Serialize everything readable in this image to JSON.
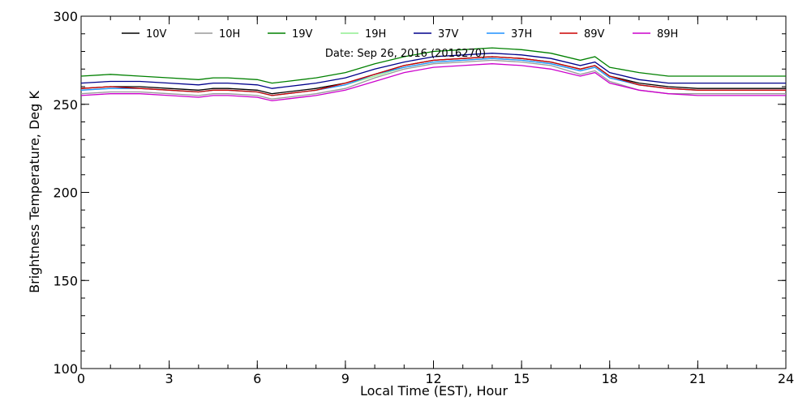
{
  "chart_data": {
    "type": "line",
    "title": "Date: Sep 26, 2016 (2016270)",
    "xlabel": "Local Time (EST), Hour",
    "ylabel": "Brightness Temperature, Deg  K",
    "xlim": [
      0,
      24
    ],
    "ylim": [
      100,
      300
    ],
    "x_ticks": [
      0,
      3,
      6,
      9,
      12,
      15,
      18,
      21,
      24
    ],
    "y_ticks": [
      100,
      150,
      200,
      250,
      300
    ],
    "grid": false,
    "legend_position": "top",
    "x": [
      0,
      1,
      2,
      3,
      4,
      4.5,
      5,
      6,
      6.5,
      7,
      8,
      9,
      10,
      11,
      12,
      13,
      14,
      15,
      16,
      17,
      17.5,
      18,
      19,
      20,
      21,
      22,
      23,
      24
    ],
    "series": [
      {
        "name": "10V",
        "color": "#000000",
        "values": [
          259,
          260,
          260,
          259,
          258,
          259,
          259,
          258,
          256,
          257,
          259,
          262,
          267,
          272,
          275,
          276,
          277,
          276,
          274,
          270,
          272,
          266,
          262,
          260,
          259,
          259,
          259,
          259
        ]
      },
      {
        "name": "10H",
        "color": "#999999",
        "values": [
          256,
          257,
          257,
          256,
          255,
          256,
          256,
          255,
          253,
          254,
          256,
          259,
          265,
          270,
          273,
          274,
          275,
          274,
          272,
          267,
          269,
          263,
          258,
          256,
          256,
          256,
          256,
          256
        ]
      },
      {
        "name": "19V",
        "color": "#008000",
        "values": [
          266,
          267,
          266,
          265,
          264,
          265,
          265,
          264,
          262,
          263,
          265,
          268,
          273,
          277,
          280,
          281,
          282,
          281,
          279,
          275,
          277,
          271,
          268,
          266,
          266,
          266,
          266,
          266
        ]
      },
      {
        "name": "19H",
        "color": "#90ee90",
        "values": [
          258,
          259,
          259,
          258,
          257,
          258,
          258,
          257,
          255,
          256,
          258,
          261,
          266,
          271,
          274,
          275,
          276,
          275,
          273,
          269,
          271,
          265,
          261,
          259,
          258,
          258,
          258,
          258
        ]
      },
      {
        "name": "37V",
        "color": "#00008b",
        "values": [
          262,
          263,
          263,
          262,
          261,
          262,
          262,
          261,
          259,
          260,
          262,
          265,
          270,
          274,
          277,
          278,
          279,
          278,
          276,
          272,
          274,
          268,
          264,
          262,
          262,
          262,
          262,
          262
        ]
      },
      {
        "name": "37H",
        "color": "#1e90ff",
        "values": [
          258,
          259,
          259,
          258,
          257,
          258,
          258,
          257,
          255,
          256,
          258,
          261,
          267,
          271,
          274,
          275,
          276,
          275,
          273,
          269,
          271,
          265,
          261,
          259,
          258,
          258,
          258,
          258
        ]
      },
      {
        "name": "89V",
        "color": "#cc0000",
        "values": [
          259,
          260,
          259,
          258,
          257,
          258,
          258,
          257,
          255,
          256,
          258,
          262,
          267,
          272,
          275,
          276,
          277,
          276,
          274,
          270,
          272,
          266,
          261,
          259,
          258,
          258,
          258,
          258
        ]
      },
      {
        "name": "89H",
        "color": "#cc00cc",
        "values": [
          255,
          256,
          256,
          255,
          254,
          255,
          255,
          254,
          252,
          253,
          255,
          258,
          263,
          268,
          271,
          272,
          273,
          272,
          270,
          266,
          268,
          262,
          258,
          256,
          255,
          255,
          255,
          255
        ]
      }
    ]
  }
}
